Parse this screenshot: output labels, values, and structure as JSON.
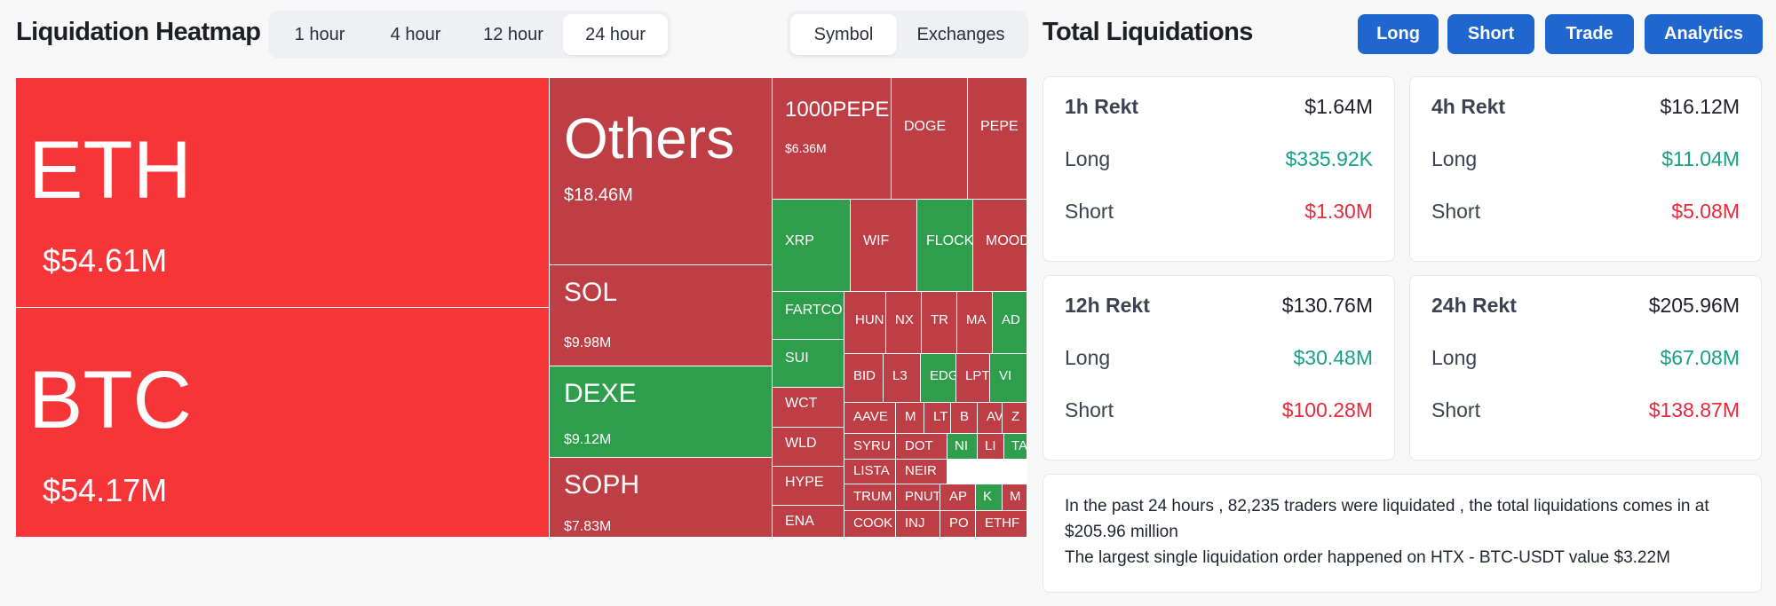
{
  "header": {
    "title": "Liquidation Heatmap",
    "time_tabs": [
      "1 hour",
      "4 hour",
      "12 hour",
      "24 hour"
    ],
    "active_time_tab": "24 hour",
    "view_tabs": [
      "Symbol",
      "Exchanges"
    ],
    "active_view_tab": "Symbol"
  },
  "right_header": {
    "title": "Total Liquidations",
    "buttons": [
      "Long",
      "Short",
      "Trade",
      "Analytics"
    ]
  },
  "colors": {
    "red_large": "#f53538",
    "red": "#bd3e44",
    "green": "#2e9e4c",
    "accent_blue": "#1f67cf",
    "long_text": "#16a085",
    "short_text": "#e8293b"
  },
  "heatmap": {
    "tiles": [
      {
        "symbol": "ETH",
        "value": "$54.61M",
        "color": "red_large"
      },
      {
        "symbol": "BTC",
        "value": "$54.17M",
        "color": "red_large"
      },
      {
        "symbol": "Others",
        "value": "$18.46M",
        "color": "red"
      },
      {
        "symbol": "SOL",
        "value": "$9.98M",
        "color": "red"
      },
      {
        "symbol": "DEXE",
        "value": "$9.12M",
        "color": "green"
      },
      {
        "symbol": "SOPH",
        "value": "$7.83M",
        "color": "red"
      },
      {
        "symbol": "1000PEPE",
        "value": "$6.36M",
        "color": "red"
      },
      {
        "symbol": "DOGE",
        "value": "",
        "color": "red"
      },
      {
        "symbol": "PEPE",
        "value": "",
        "color": "red"
      },
      {
        "symbol": "XRP",
        "value": "",
        "color": "green"
      },
      {
        "symbol": "WIF",
        "value": "",
        "color": "red"
      },
      {
        "symbol": "FLOCK",
        "value": "",
        "color": "green"
      },
      {
        "symbol": "MOOD",
        "value": "",
        "color": "red"
      },
      {
        "symbol": "FARTCOI",
        "value": "",
        "color": "green"
      },
      {
        "symbol": "SUI",
        "value": "",
        "color": "green"
      },
      {
        "symbol": "WCT",
        "value": "",
        "color": "red"
      },
      {
        "symbol": "WLD",
        "value": "",
        "color": "red"
      },
      {
        "symbol": "HYPE",
        "value": "",
        "color": "red"
      },
      {
        "symbol": "ENA",
        "value": "",
        "color": "red"
      },
      {
        "symbol": "HUN",
        "value": "",
        "color": "red"
      },
      {
        "symbol": "NX",
        "value": "",
        "color": "red"
      },
      {
        "symbol": "TR",
        "value": "",
        "color": "red"
      },
      {
        "symbol": "MA",
        "value": "",
        "color": "red"
      },
      {
        "symbol": "AD",
        "value": "",
        "color": "green"
      },
      {
        "symbol": "BID",
        "value": "",
        "color": "red"
      },
      {
        "symbol": "L3",
        "value": "",
        "color": "red"
      },
      {
        "symbol": "EDG",
        "value": "",
        "color": "green"
      },
      {
        "symbol": "LPT",
        "value": "",
        "color": "red"
      },
      {
        "symbol": "VI",
        "value": "",
        "color": "green"
      },
      {
        "symbol": "AAVE",
        "value": "",
        "color": "red"
      },
      {
        "symbol": "M",
        "value": "",
        "color": "red"
      },
      {
        "symbol": "LT",
        "value": "",
        "color": "red"
      },
      {
        "symbol": "B",
        "value": "",
        "color": "red"
      },
      {
        "symbol": "AV",
        "value": "",
        "color": "red"
      },
      {
        "symbol": "Z",
        "value": "",
        "color": "red"
      },
      {
        "symbol": "SYRU",
        "value": "",
        "color": "red"
      },
      {
        "symbol": "DOT",
        "value": "",
        "color": "red"
      },
      {
        "symbol": "NI",
        "value": "",
        "color": "green"
      },
      {
        "symbol": "LI",
        "value": "",
        "color": "red"
      },
      {
        "symbol": "TA",
        "value": "",
        "color": "green"
      },
      {
        "symbol": "LISTA",
        "value": "",
        "color": "red"
      },
      {
        "symbol": "NEIR",
        "value": "",
        "color": "red"
      },
      {
        "symbol": "TRUM",
        "value": "",
        "color": "red"
      },
      {
        "symbol": "PNUT",
        "value": "",
        "color": "red"
      },
      {
        "symbol": "AP",
        "value": "",
        "color": "red"
      },
      {
        "symbol": "K",
        "value": "",
        "color": "green"
      },
      {
        "symbol": "M",
        "value": "",
        "color": "red"
      },
      {
        "symbol": "COOK",
        "value": "",
        "color": "red"
      },
      {
        "symbol": "INJ",
        "value": "",
        "color": "red"
      },
      {
        "symbol": "PO",
        "value": "",
        "color": "red"
      },
      {
        "symbol": "ETHF",
        "value": "",
        "color": "red"
      }
    ]
  },
  "rekt_cards": [
    {
      "title": "1h Rekt",
      "total": "$1.64M",
      "long_label": "Long",
      "long": "$335.92K",
      "short_label": "Short",
      "short": "$1.30M"
    },
    {
      "title": "4h Rekt",
      "total": "$16.12M",
      "long_label": "Long",
      "long": "$11.04M",
      "short_label": "Short",
      "short": "$5.08M"
    },
    {
      "title": "12h Rekt",
      "total": "$130.76M",
      "long_label": "Long",
      "long": "$30.48M",
      "short_label": "Short",
      "short": "$100.28M"
    },
    {
      "title": "24h Rekt",
      "total": "$205.96M",
      "long_label": "Long",
      "long": "$67.08M",
      "short_label": "Short",
      "short": "$138.87M"
    }
  ],
  "summary": {
    "line1": "In the past 24 hours , 82,235 traders were liquidated , the total liquidations comes in at $205.96 million",
    "line2": "The largest single liquidation order happened on HTX - BTC-USDT value $3.22M"
  }
}
